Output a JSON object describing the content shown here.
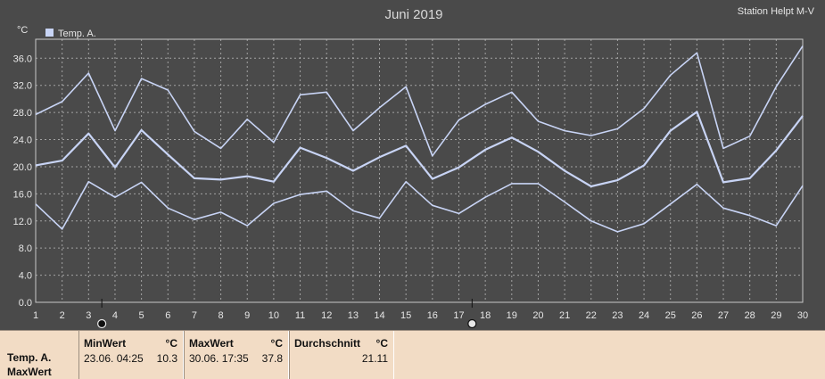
{
  "chart_data": {
    "type": "line",
    "title": "Juni 2019",
    "station": "Station Helpt M-V",
    "ylabel": "°C",
    "legend": "Temp. A.",
    "legend_position": "top-left",
    "grid": true,
    "ylim": [
      0,
      38.8
    ],
    "yticks": [
      "0.0",
      "4.0",
      "8.0",
      "12.0",
      "16.0",
      "20.0",
      "24.0",
      "28.0",
      "32.0",
      "36.0"
    ],
    "categories": [
      "1",
      "2",
      "3",
      "4",
      "5",
      "6",
      "7",
      "8",
      "9",
      "10",
      "11",
      "12",
      "13",
      "14",
      "15",
      "16",
      "17",
      "18",
      "19",
      "20",
      "21",
      "22",
      "23",
      "24",
      "25",
      "26",
      "27",
      "28",
      "29",
      "30"
    ],
    "series": [
      {
        "role": "max",
        "values": [
          27.7,
          29.6,
          33.8,
          25.3,
          33.0,
          31.3,
          25.2,
          22.7,
          27.0,
          23.6,
          30.6,
          31.0,
          25.3,
          28.7,
          31.8,
          21.6,
          26.9,
          29.2,
          31.0,
          26.7,
          25.3,
          24.6,
          25.6,
          28.6,
          33.5,
          36.8,
          22.7,
          24.5,
          31.8,
          37.8
        ]
      },
      {
        "role": "avg",
        "values": [
          20.2,
          20.9,
          24.9,
          19.9,
          25.4,
          21.8,
          18.3,
          18.1,
          18.6,
          17.8,
          22.8,
          21.3,
          19.4,
          21.4,
          23.1,
          18.2,
          19.9,
          22.5,
          24.3,
          22.2,
          19.4,
          17.1,
          18.0,
          20.2,
          25.3,
          28.1,
          17.7,
          18.3,
          22.4,
          27.5
        ]
      },
      {
        "role": "min",
        "values": [
          14.5,
          10.8,
          17.8,
          15.5,
          17.7,
          13.9,
          12.2,
          13.3,
          11.3,
          14.6,
          15.9,
          16.4,
          13.5,
          12.4,
          17.8,
          14.3,
          13.1,
          15.5,
          17.5,
          17.5,
          14.8,
          12.0,
          10.4,
          11.6,
          14.5,
          17.4,
          13.9,
          12.8,
          11.3,
          17.2
        ]
      }
    ],
    "markers": [
      {
        "day": 3.5,
        "value": 10.3,
        "type": "min"
      },
      {
        "day": 17.5,
        "value": 37.8,
        "type": "max"
      }
    ],
    "line_color": "#c8d4f5",
    "bg_color": "#4a4a4a",
    "grid_color": "#c8c8c8"
  },
  "stats": {
    "row_label_1": "Temp. A.",
    "row_label_2": "MaxWert",
    "min_header": "MinWert",
    "max_header": "MaxWert",
    "avg_header": "Durchschnitt",
    "unit": "°C",
    "min_datetime": "23.06.  04:25",
    "min_value": "10.3",
    "max_datetime": "30.06.  17:35",
    "max_value": "37.8",
    "avg_value": "21.11"
  }
}
